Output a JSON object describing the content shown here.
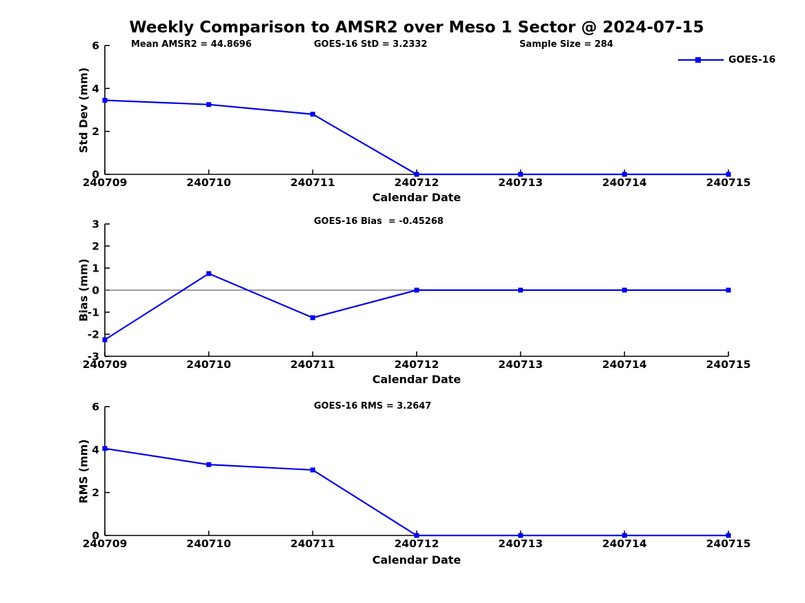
{
  "title": "Weekly Comparison to AMSR2 over Meso 1 Sector @ 2024-07-15",
  "stats": {
    "mean_amsr2": 44.8696,
    "goes16_std": 3.2332,
    "sample_size": 284,
    "goes16_bias": -0.45268,
    "goes16_rms": 3.2647
  },
  "legend": {
    "entries": [
      "GOES-16"
    ],
    "position": "top-right-outside"
  },
  "chart_data": [
    {
      "type": "line",
      "panel": "std-dev",
      "annotations": [
        "Mean AMSR2 = 44.8696",
        "GOES-16 StD = 3.2332",
        "Sample Size = 284"
      ],
      "categories": [
        "240709",
        "240710",
        "240711",
        "240712",
        "240713",
        "240714",
        "240715"
      ],
      "series": [
        {
          "name": "GOES-16",
          "color": "#0000ee",
          "marker": "square",
          "values": [
            3.45,
            3.25,
            2.8,
            0,
            0,
            0,
            0
          ]
        }
      ],
      "xlabel": "Calendar Date",
      "ylabel": "Std Dev (mm)",
      "ylim": [
        0,
        6
      ],
      "yticks": [
        0,
        2,
        4,
        6
      ],
      "grid": false
    },
    {
      "type": "line",
      "panel": "bias",
      "annotations": [
        "GOES-16 Bias  = -0.45268"
      ],
      "categories": [
        "240709",
        "240710",
        "240711",
        "240712",
        "240713",
        "240714",
        "240715"
      ],
      "series": [
        {
          "name": "GOES-16",
          "color": "#0000ee",
          "marker": "square",
          "values": [
            -2.25,
            0.75,
            -1.25,
            0,
            0,
            0,
            0
          ]
        }
      ],
      "xlabel": "Calendar Date",
      "ylabel": "Bias (mm)",
      "ylim": [
        -3,
        3
      ],
      "yticks": [
        -3,
        -2,
        -1,
        0,
        1,
        2,
        3
      ],
      "zero_line": true,
      "zero_line_color": "#666666",
      "grid": false
    },
    {
      "type": "line",
      "panel": "rms",
      "annotations": [
        "GOES-16 RMS = 3.2647"
      ],
      "categories": [
        "240709",
        "240710",
        "240711",
        "240712",
        "240713",
        "240714",
        "240715"
      ],
      "series": [
        {
          "name": "GOES-16",
          "color": "#0000ee",
          "marker": "square",
          "values": [
            4.05,
            3.3,
            3.05,
            0,
            0,
            0,
            0
          ]
        }
      ],
      "xlabel": "Calendar Date",
      "ylabel": "RMS (mm)",
      "ylim": [
        0,
        6
      ],
      "yticks": [
        0,
        2,
        4,
        6
      ],
      "grid": false
    }
  ]
}
